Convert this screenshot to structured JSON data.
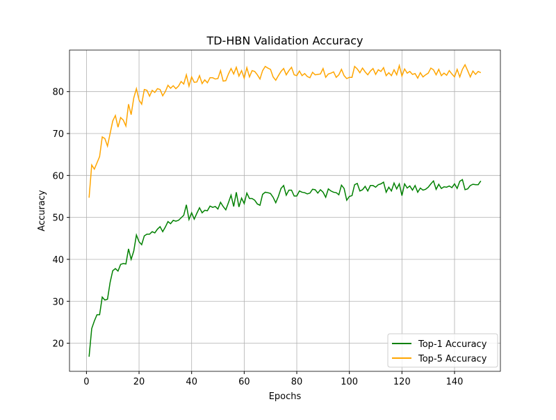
{
  "chart_data": {
    "type": "line",
    "title": "TD-HBN Validation Accuracy",
    "x_label": "Epochs",
    "y_label": "Accuracy",
    "x": [
      1,
      2,
      3,
      4,
      5,
      6,
      7,
      8,
      9,
      10,
      11,
      12,
      13,
      14,
      15,
      16,
      17,
      18,
      19,
      20,
      21,
      22,
      23,
      24,
      25,
      26,
      27,
      28,
      29,
      30,
      31,
      32,
      33,
      34,
      35,
      36,
      37,
      38,
      39,
      40,
      41,
      42,
      43,
      44,
      45,
      46,
      47,
      48,
      49,
      50,
      51,
      52,
      53,
      54,
      55,
      56,
      57,
      58,
      59,
      60,
      61,
      62,
      63,
      64,
      65,
      66,
      67,
      68,
      69,
      70,
      71,
      72,
      73,
      74,
      75,
      76,
      77,
      78,
      79,
      80,
      81,
      82,
      83,
      84,
      85,
      86,
      87,
      88,
      89,
      90,
      91,
      92,
      93,
      94,
      95,
      96,
      97,
      98,
      99,
      100,
      101,
      102,
      103,
      104,
      105,
      106,
      107,
      108,
      109,
      110,
      111,
      112,
      113,
      114,
      115,
      116,
      117,
      118,
      119,
      120,
      121,
      122,
      123,
      124,
      125,
      126,
      127,
      128,
      129,
      130,
      131,
      132,
      133,
      134,
      135,
      136,
      137,
      138,
      139,
      140,
      141,
      142,
      143,
      144,
      145,
      146,
      147,
      148,
      149,
      150
    ],
    "series": [
      {
        "name": "Top-1 Accuracy",
        "color": "#008000",
        "values": [
          16.8,
          23.5,
          25.3,
          26.8,
          26.8,
          31,
          30.3,
          30.5,
          34.5,
          37.3,
          37.8,
          37.2,
          38.8,
          39,
          38.9,
          42.5,
          40,
          42,
          45.8,
          44.2,
          43.5,
          45.6,
          46,
          46,
          46.6,
          46.3,
          47.2,
          47.8,
          46.6,
          47.7,
          49,
          48.5,
          49.3,
          49.1,
          49.3,
          49.9,
          50.5,
          53,
          49.5,
          51.1,
          49.6,
          51,
          52.3,
          51.1,
          51.7,
          51.6,
          52.7,
          52.4,
          52.6,
          52,
          53.6,
          52.6,
          51.8,
          53.5,
          55.3,
          52.6,
          56,
          52.5,
          54.6,
          53.3,
          55.8,
          54.5,
          54.5,
          54.1,
          53.2,
          52.9,
          55.5,
          56,
          55.9,
          55.7,
          54.8,
          53.5,
          55,
          56.9,
          57.6,
          55.3,
          56.5,
          56.5,
          55.1,
          55.1,
          56.3,
          56,
          55.9,
          55.6,
          55.8,
          56.7,
          56.6,
          55.8,
          56.6,
          56,
          54.8,
          56.8,
          56.3,
          56,
          55.9,
          55.4,
          57.7,
          56.9,
          54.1,
          55,
          55.2,
          57.8,
          58.1,
          56.3,
          56.6,
          57.4,
          56.3,
          57.6,
          57.6,
          57.2,
          57.8,
          58,
          58.4,
          56,
          57.2,
          56.3,
          58.2,
          56.8,
          58,
          55.2,
          58,
          57,
          57.5,
          56.5,
          57.6,
          56,
          57,
          56.5,
          56.7,
          57.2,
          58,
          58.7,
          56.7,
          57.9,
          56.9,
          57.3,
          57.2,
          57.5,
          57.1,
          58,
          56.9,
          58.6,
          59,
          56.6,
          56.8,
          57.6,
          57.9,
          57.8,
          57.8,
          58.7
        ]
      },
      {
        "name": "Top-5 Accuracy",
        "color": "#ffa500",
        "values": [
          54.7,
          62.5,
          61.5,
          63,
          64.5,
          69.2,
          68.8,
          67,
          70,
          73,
          74.3,
          71.5,
          73.8,
          73.2,
          71.8,
          77,
          74.5,
          78.5,
          80.7,
          78,
          77,
          80.5,
          80.3,
          78.9,
          80.3,
          79.8,
          80.7,
          80.5,
          79,
          80,
          81.5,
          80.8,
          81.4,
          80.7,
          81.3,
          82.4,
          81.8,
          84,
          81.3,
          83.5,
          82.2,
          82.3,
          83.8,
          81.9,
          82.8,
          82.1,
          83.3,
          83.3,
          83,
          83.1,
          85,
          82.5,
          82.6,
          84.2,
          85.5,
          84.2,
          85.8,
          83.7,
          85,
          83.2,
          85.7,
          83.5,
          85,
          84.8,
          84,
          83,
          85,
          86,
          85.6,
          85.3,
          83.5,
          82.7,
          83.8,
          84.8,
          85.5,
          84,
          85,
          85.8,
          84,
          83.8,
          84.9,
          83.8,
          84.3,
          83.6,
          83.3,
          84.6,
          84,
          84.1,
          84.2,
          85.5,
          83.4,
          84.2,
          84.4,
          84.7,
          83.4,
          84,
          85.3,
          83.8,
          83.1,
          83.4,
          83.4,
          86,
          85.4,
          84.5,
          85.6,
          84.7,
          84,
          84.9,
          85.5,
          84.1,
          85.2,
          84.8,
          85.7,
          83.8,
          84.5,
          83.8,
          85.2,
          84,
          86.2,
          83.7,
          85.4,
          84.4,
          84.8,
          84.1,
          84.3,
          83.2,
          84.5,
          83.5,
          84,
          84.4,
          85.6,
          85.2,
          84,
          85.3,
          83.8,
          84.4,
          83.9,
          85,
          84.2,
          83.5,
          85.3,
          83.5,
          85.3,
          86.4,
          85,
          83.5,
          84.9,
          84.1,
          84.8,
          84.5
        ]
      }
    ],
    "xlim": [
      -6.45,
      157.45
    ],
    "xticks": [
      0,
      20,
      40,
      60,
      80,
      100,
      120,
      140
    ],
    "ylim": [
      13.3,
      89.9
    ],
    "yticks": [
      20,
      30,
      40,
      50,
      60,
      70,
      80
    ],
    "grid": true,
    "legend": "lower right"
  }
}
